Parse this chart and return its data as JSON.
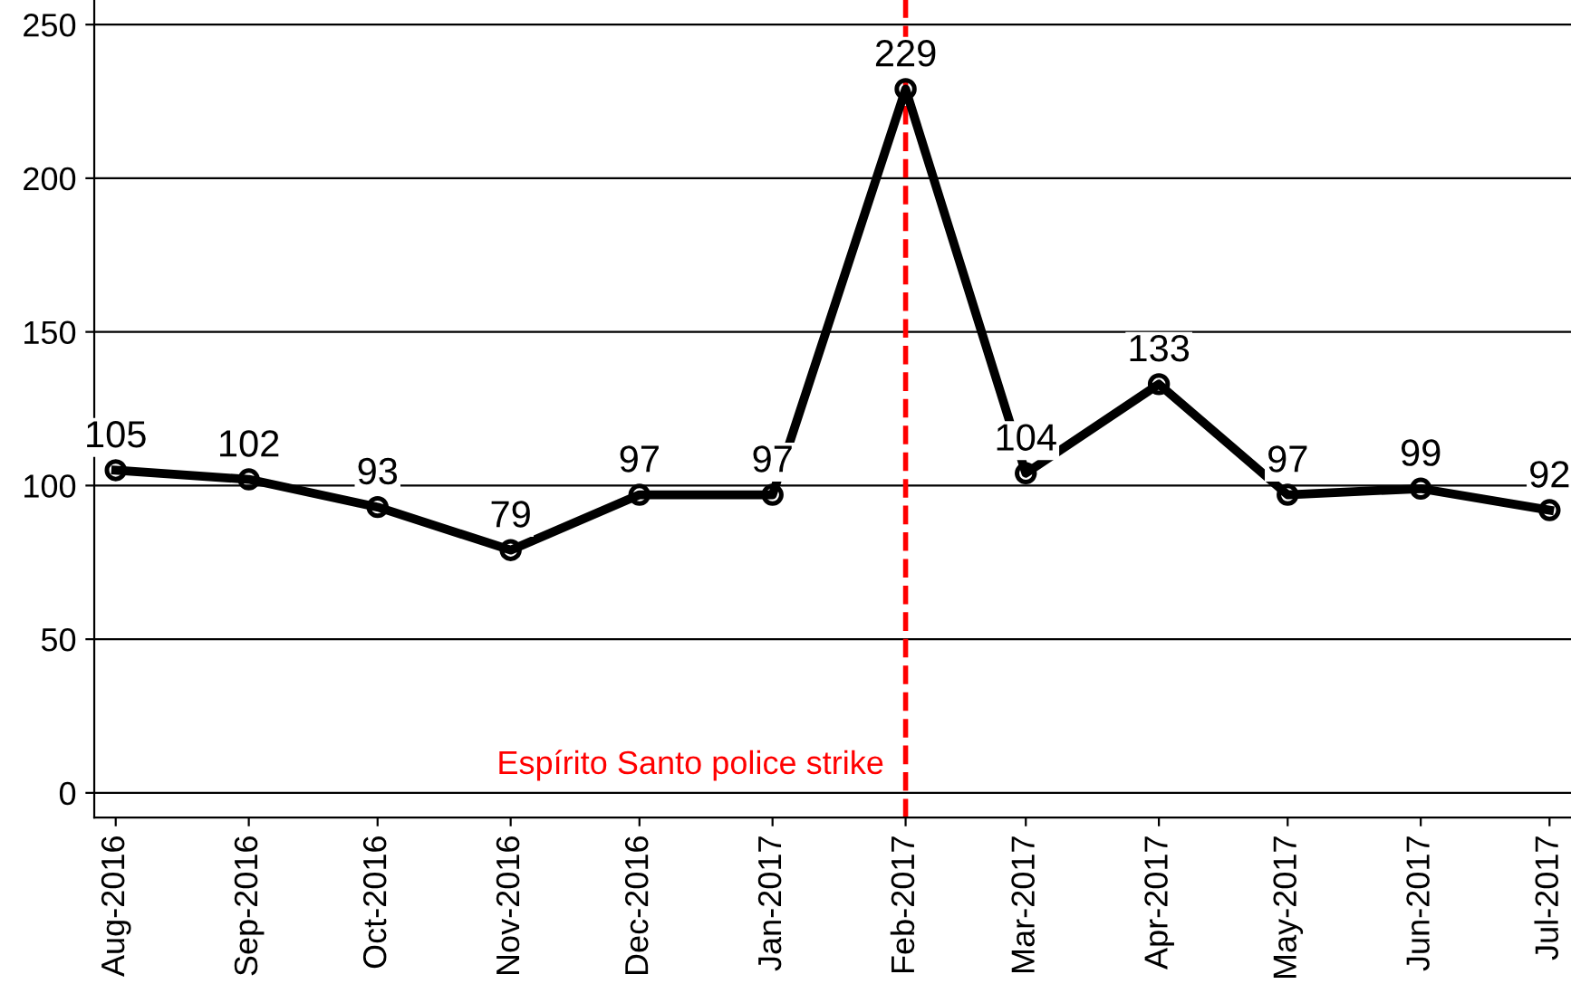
{
  "chart_data": {
    "type": "line",
    "x": [
      "2016-08",
      "2016-09",
      "2016-10",
      "2016-11",
      "2016-12",
      "2017-01",
      "2017-02",
      "2017-03",
      "2017-04",
      "2017-05",
      "2017-06",
      "2017-07"
    ],
    "series": [
      {
        "color": "#000000",
        "values": [
          105,
          102,
          93,
          79,
          97,
          97,
          229,
          104,
          133,
          97,
          99,
          92
        ]
      }
    ],
    "xlim": [
      "2016-07-27",
      "2017-07-06"
    ],
    "xticks": [
      {
        "value": "2016-08",
        "label": "Aug-2016"
      },
      {
        "value": "2016-09",
        "label": "Sep-2016"
      },
      {
        "value": "2016-10",
        "label": "Oct-2016"
      },
      {
        "value": "2016-11",
        "label": "Nov-2016"
      },
      {
        "value": "2016-12",
        "label": "Dec-2016"
      },
      {
        "value": "2017-01",
        "label": "Jan-2017"
      },
      {
        "value": "2017-02",
        "label": "Feb-2017"
      },
      {
        "value": "2017-03",
        "label": "Mar-2017"
      },
      {
        "value": "2017-04",
        "label": "Apr-2017"
      },
      {
        "value": "2017-05",
        "label": "May-2017"
      },
      {
        "value": "2017-06",
        "label": "Jun-2017"
      },
      {
        "value": "2017-07",
        "label": "Jul-2017"
      }
    ],
    "ylim": [
      -8,
      258
    ],
    "yticks": [
      0,
      50,
      100,
      150,
      200,
      250
    ],
    "grid": "y",
    "marker": "circle",
    "line_style": "solid",
    "data_labels": true,
    "ref_lines": [
      {
        "axis": "x",
        "value": "2017-02",
        "label": "Espírito Santo police strike",
        "color": "#ff0000",
        "line_style": "dashed"
      }
    ]
  }
}
